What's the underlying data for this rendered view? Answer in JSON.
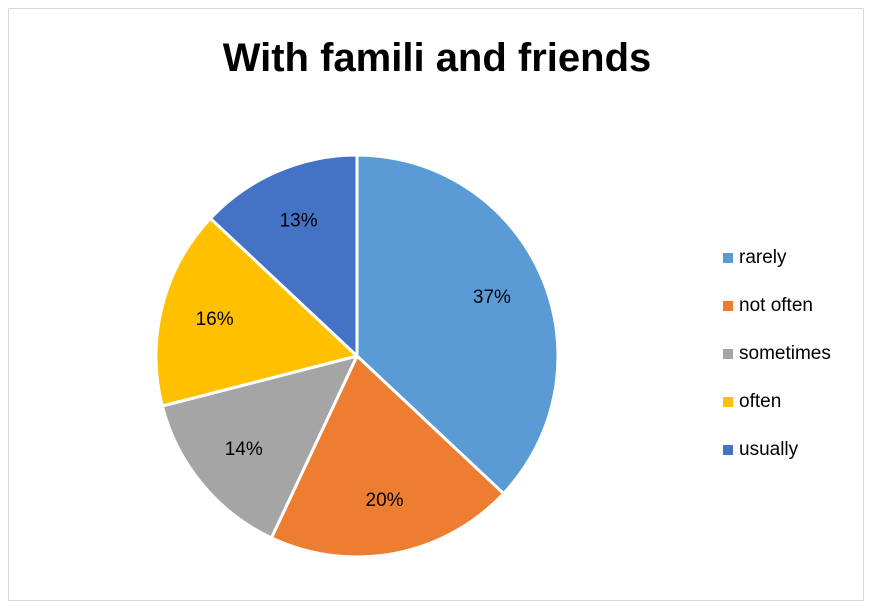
{
  "chart_data": {
    "type": "pie",
    "title": "With famili and friends",
    "categories": [
      "rarely",
      "not often",
      "sometimes",
      "often",
      "usually"
    ],
    "values": [
      37,
      20,
      14,
      16,
      13
    ],
    "value_labels": [
      "37%",
      "20%",
      "14%",
      "16%",
      "13%"
    ],
    "colors": [
      "#5B9BD5",
      "#ED7D31",
      "#A5A5A5",
      "#FFC000",
      "#4472C4"
    ],
    "start_angle_deg": 0,
    "direction": "clockwise",
    "legend_position": "right"
  }
}
